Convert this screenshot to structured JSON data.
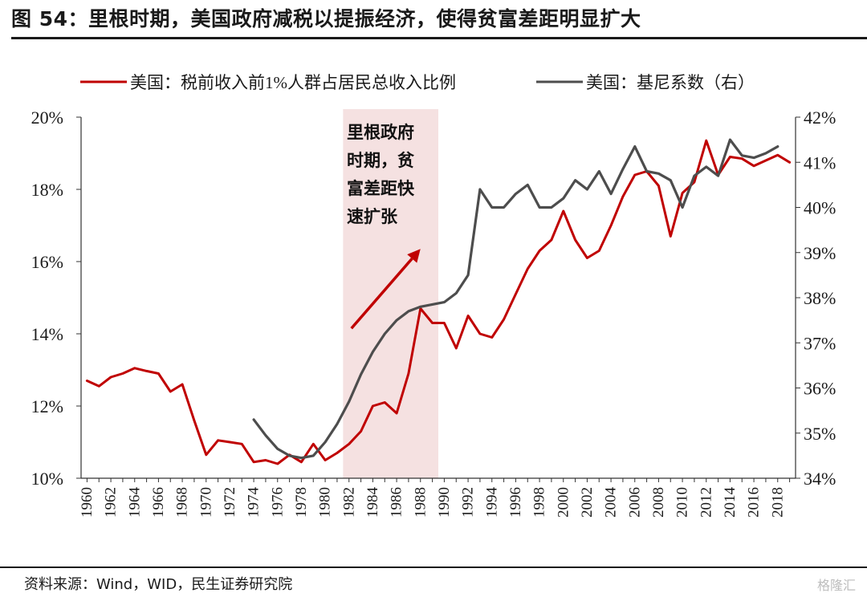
{
  "title": "图 54：里根时期，美国政府减税以提振经济，使得贫富差距明显扩大",
  "source": "资料来源：Wind，WID，民生证券研究院",
  "watermark": "格隆汇",
  "chart_data": {
    "type": "line",
    "title": "图 54：里根时期，美国政府减税以提振经济，使得贫富差距明显扩大",
    "xlabel": "",
    "ylabel_left": "",
    "ylabel_right": "",
    "xlim": [
      1959.5,
      2019.5
    ],
    "ylim_left": [
      10,
      20
    ],
    "ylim_right": [
      34,
      42
    ],
    "left_ticks": [
      "10%",
      "12%",
      "14%",
      "16%",
      "18%",
      "20%"
    ],
    "right_ticks": [
      "34%",
      "35%",
      "36%",
      "37%",
      "38%",
      "39%",
      "40%",
      "41%",
      "42%"
    ],
    "x_ticks": [
      "1960",
      "1962",
      "1964",
      "1966",
      "1968",
      "1970",
      "1972",
      "1974",
      "1976",
      "1978",
      "1980",
      "1982",
      "1984",
      "1986",
      "1988",
      "1990",
      "1992",
      "1994",
      "1996",
      "1998",
      "2000",
      "2002",
      "2004",
      "2006",
      "2008",
      "2010",
      "2012",
      "2014",
      "2016",
      "2018"
    ],
    "legend_position": "top",
    "colors": {
      "red": "#c00000",
      "gray": "#4d4d4d",
      "shade": "#f5e1e1"
    },
    "annotation": {
      "lines": [
        "里根政府",
        "时期，贫",
        "富差距快",
        "速扩张"
      ],
      "shade_range": [
        1981.5,
        1989.5
      ],
      "arrow_from": [
        1982.2,
        14.15
      ],
      "arrow_to": [
        1988.0,
        16.35
      ]
    },
    "series": [
      {
        "name": "美国：税前收入前1%人群占居民总收入比例",
        "axis": "left",
        "color": "#c00000",
        "x": [
          1960,
          1961,
          1962,
          1963,
          1964,
          1965,
          1966,
          1967,
          1968,
          1969,
          1970,
          1971,
          1972,
          1973,
          1974,
          1975,
          1976,
          1977,
          1978,
          1979,
          1980,
          1981,
          1982,
          1983,
          1984,
          1985,
          1986,
          1987,
          1988,
          1989,
          1990,
          1991,
          1992,
          1993,
          1994,
          1995,
          1996,
          1997,
          1998,
          1999,
          2000,
          2001,
          2002,
          2003,
          2004,
          2005,
          2006,
          2007,
          2008,
          2009,
          2010,
          2011,
          2012,
          2013,
          2014,
          2015,
          2016,
          2017,
          2018,
          2019
        ],
        "values": [
          12.7,
          12.55,
          12.8,
          12.9,
          13.05,
          12.97,
          12.9,
          12.4,
          12.6,
          11.6,
          10.65,
          11.05,
          11.0,
          10.95,
          10.45,
          10.5,
          10.4,
          10.65,
          10.45,
          10.95,
          10.5,
          10.7,
          10.95,
          11.3,
          12.0,
          12.1,
          11.8,
          12.9,
          14.7,
          14.3,
          14.3,
          13.6,
          14.5,
          14.0,
          13.9,
          14.4,
          15.1,
          15.8,
          16.3,
          16.6,
          17.4,
          16.6,
          16.1,
          16.3,
          17.0,
          17.8,
          18.4,
          18.5,
          18.1,
          16.7,
          17.9,
          18.2,
          19.35,
          18.4,
          18.9,
          18.85,
          18.65,
          18.8,
          18.95,
          18.75
        ]
      },
      {
        "name": "美国：基尼系数（右）",
        "axis": "right",
        "color": "#4d4d4d",
        "x": [
          1974,
          1975,
          1976,
          1977,
          1978,
          1979,
          1980,
          1981,
          1982,
          1983,
          1984,
          1985,
          1986,
          1987,
          1988,
          1989,
          1990,
          1991,
          1992,
          1993,
          1994,
          1995,
          1996,
          1997,
          1998,
          1999,
          2000,
          2001,
          2002,
          2003,
          2004,
          2005,
          2006,
          2007,
          2008,
          2009,
          2010,
          2011,
          2012,
          2013,
          2014,
          2015,
          2016,
          2017,
          2018
        ],
        "values": [
          35.3,
          34.95,
          34.65,
          34.5,
          34.45,
          34.5,
          34.8,
          35.2,
          35.7,
          36.3,
          36.8,
          37.2,
          37.5,
          37.7,
          37.8,
          37.85,
          37.9,
          38.1,
          38.5,
          40.4,
          40.0,
          40.0,
          40.3,
          40.5,
          40.0,
          40.0,
          40.2,
          40.6,
          40.4,
          40.8,
          40.3,
          40.85,
          41.35,
          40.8,
          40.75,
          40.6,
          40.0,
          40.7,
          40.9,
          40.7,
          41.5,
          41.15,
          41.1,
          41.2,
          41.35
        ]
      }
    ]
  }
}
